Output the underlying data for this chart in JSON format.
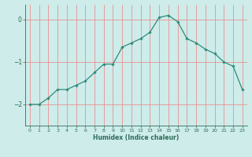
{
  "x": [
    0,
    1,
    2,
    3,
    4,
    5,
    6,
    7,
    8,
    9,
    10,
    11,
    12,
    13,
    14,
    15,
    16,
    17,
    18,
    19,
    20,
    21,
    22,
    23
  ],
  "y": [
    -2.0,
    -2.0,
    -1.85,
    -1.65,
    -1.65,
    -1.55,
    -1.45,
    -1.25,
    -1.05,
    -1.05,
    -0.65,
    -0.55,
    -0.45,
    -0.3,
    0.05,
    0.1,
    -0.05,
    -0.45,
    -0.55,
    -0.7,
    -0.8,
    -1.0,
    -1.1,
    -1.65
  ],
  "xlabel": "Humidex (Indice chaleur)",
  "line_color": "#2e8b7a",
  "marker": "D",
  "marker_size": 1.8,
  "bg_color": "#cdecea",
  "grid_color": "#f08080",
  "axes_color": "#2e6b5a",
  "tick_color": "#2e6b5a",
  "ylim": [
    -2.5,
    0.35
  ],
  "xlim": [
    -0.5,
    23.5
  ],
  "yticks": [
    -2,
    -1,
    0
  ],
  "xticks": [
    0,
    1,
    2,
    3,
    4,
    5,
    6,
    7,
    8,
    9,
    10,
    11,
    12,
    13,
    14,
    15,
    16,
    17,
    18,
    19,
    20,
    21,
    22,
    23
  ]
}
